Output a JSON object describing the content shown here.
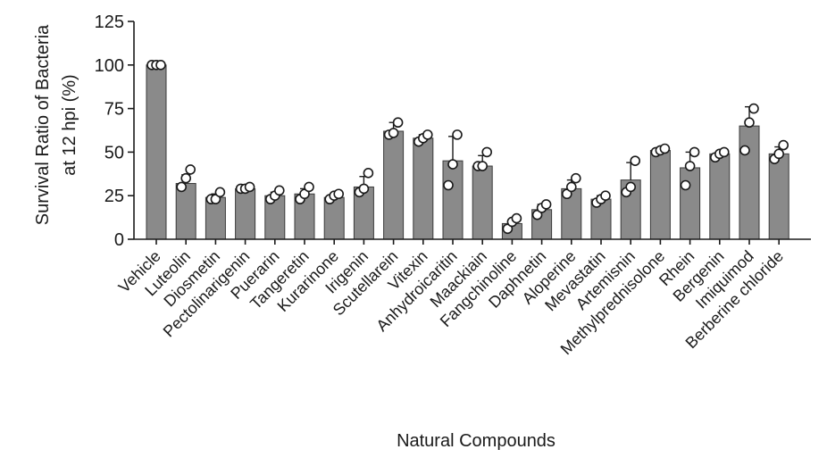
{
  "chart_data": {
    "type": "bar",
    "title": "",
    "xlabel": "Natural Compounds",
    "ylabel_line1": "Survival Ratio of Bacteria",
    "ylabel_line2": "at 12 hpi (%)",
    "ylim": [
      0,
      125
    ],
    "yticks": [
      0,
      25,
      50,
      75,
      100,
      125
    ],
    "grid": false,
    "bar_color": "#8a8a8a",
    "categories": [
      "Vehicle",
      "Luteolin",
      "Diosmetin",
      "Pectolinarigenin",
      "Puerarin",
      "Tangeretin",
      "Kurarinone",
      "Irigenin",
      "Scutellarein",
      "Vitexin",
      "Anhydroicaritin",
      "Maackiain",
      "Fangchinoline",
      "Daphnetin",
      "Aloperine",
      "Mevastatin",
      "Artemisnin",
      "Methylprednisolone",
      "Rhein",
      "Bergenin",
      "Imiquimod",
      "Berberine chloride"
    ],
    "values": [
      100,
      32,
      24,
      29,
      25,
      26,
      24,
      30,
      62,
      58,
      45,
      42,
      9,
      17,
      29,
      23,
      34,
      51,
      41,
      49,
      65,
      49
    ],
    "errors": [
      0,
      5,
      2,
      1,
      2,
      3,
      2,
      6,
      5,
      2,
      14,
      6,
      2,
      3,
      5,
      2,
      10,
      1,
      9,
      1,
      11,
      4
    ],
    "points": [
      [
        100,
        100,
        100
      ],
      [
        30,
        35,
        40
      ],
      [
        23,
        23,
        27
      ],
      [
        29,
        29,
        30
      ],
      [
        23,
        25,
        28
      ],
      [
        23,
        26,
        30
      ],
      [
        23,
        25,
        26
      ],
      [
        27,
        29,
        38
      ],
      [
        60,
        61,
        67
      ],
      [
        56,
        58,
        60
      ],
      [
        31,
        43,
        60
      ],
      [
        42,
        42,
        50
      ],
      [
        6,
        10,
        12
      ],
      [
        14,
        18,
        20
      ],
      [
        26,
        30,
        35
      ],
      [
        21,
        23,
        25
      ],
      [
        27,
        30,
        45
      ],
      [
        50,
        51,
        52
      ],
      [
        31,
        42,
        50
      ],
      [
        47,
        49,
        50
      ],
      [
        51,
        67,
        75
      ],
      [
        46,
        49,
        54
      ]
    ]
  }
}
